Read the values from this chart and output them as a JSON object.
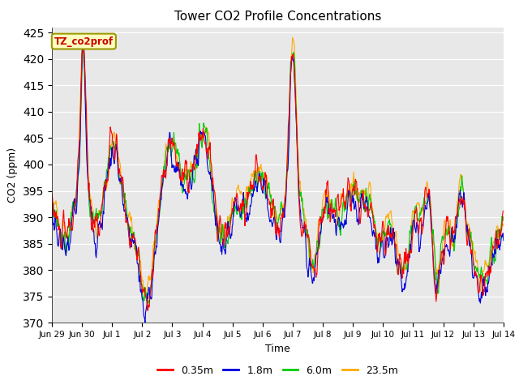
{
  "title": "Tower CO2 Profile Concentrations",
  "xlabel": "Time",
  "ylabel": "CO2 (ppm)",
  "ylim": [
    370,
    426
  ],
  "yticks": [
    370,
    375,
    380,
    385,
    390,
    395,
    400,
    405,
    410,
    415,
    420,
    425
  ],
  "legend_label": "TZ_co2prof",
  "series_labels": [
    "0.35m",
    "1.8m",
    "6.0m",
    "23.5m"
  ],
  "series_colors": [
    "#ff0000",
    "#0000dd",
    "#00cc00",
    "#ffaa00"
  ],
  "line_width": 0.8,
  "bg_color": "#e8e8e8",
  "fig_bg": "#ffffff",
  "legend_box_color": "#ffffc0",
  "legend_box_edge": "#999900",
  "legend_text_color": "#cc0000",
  "xtick_positions": [
    0,
    24,
    48,
    72,
    96,
    120,
    144,
    168,
    192,
    216,
    240,
    264,
    288,
    312,
    336,
    360
  ],
  "xtick_labels": [
    "Jun 29",
    "Jun 30",
    "Jul 1",
    "Jul 2",
    "Jul 3",
    "Jul 4",
    "Jul 5",
    "Jul 6",
    "Jul 7",
    "Jul 8",
    "Jul 9",
    "Jul 10",
    "Jul 11",
    "Jul 12",
    "Jul 13",
    "Jul 14"
  ]
}
